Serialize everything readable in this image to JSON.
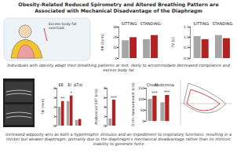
{
  "title": "Obesity-Related Reduced Spirometry and Altered Breathing Pattern are Associated with Mechanical Disadvantage of the Diaphragm",
  "figure_label": "Excess body fat overload",
  "finding": "Individuals with obesity adapt their breathing patterns at rest, likely to accommodate decreased compliance and excess body fat",
  "conclusion": "Increased adiposity acts as both a hypertrophic stimulus and an impediment to inspiratory functions, resulting in a thicker but weaker diaphragm, primarily due to the diaphragm's mechanical disadvantage rather than its intrinsic inability to generate force",
  "chart_data": [
    {
      "type": "bar",
      "y_label": "RR (bpm)",
      "categories": [
        "SITTING",
        "STANDING"
      ],
      "series": [
        {
          "color": "#a6a6a6",
          "values": [
            17,
            18
          ]
        },
        {
          "color": "#b22222",
          "values": [
            20,
            22
          ]
        }
      ],
      "ylim": [
        0,
        30
      ],
      "yticks": [
        0,
        10,
        20,
        30
      ],
      "grid": false
    },
    {
      "type": "bar",
      "y_label": "TV (L)",
      "categories": [
        "SITTING",
        "STANDING"
      ],
      "series": [
        {
          "color": "#a6a6a6",
          "values": [
            1.05,
            1.1
          ]
        },
        {
          "color": "#b22222",
          "values": [
            0.9,
            0.95
          ]
        }
      ],
      "ylim": [
        0,
        1.5
      ],
      "yticks": [
        {
          "value": 0,
          "label": "0.0"
        },
        {
          "value": 0.5,
          "label": "0.5"
        },
        {
          "value": 1,
          "label": "1.0"
        },
        {
          "value": 1.5,
          "label": "1.5"
        }
      ],
      "grid": false
    },
    {
      "type": "bar",
      "y_label": "Tdi (mm)",
      "categories": [
        "EE",
        "EI",
        "ΔTdi"
      ],
      "series": [
        {
          "color": "#a6a6a6",
          "values": [
            2.0,
            2.6,
            0.6
          ]
        },
        {
          "color": "#b22222",
          "values": [
            2.6,
            3.2,
            0.7
          ]
        }
      ],
      "ylim": [
        0,
        4
      ],
      "yticks": [
        0,
        1,
        2,
        3,
        4
      ],
      "grid": false,
      "annotations": [
        {
          "category": "EE",
          "text": "**"
        },
        {
          "category": "EI",
          "text": "*"
        }
      ]
    },
    {
      "type": "bar",
      "y_label": "Abdominal SAT (cm)",
      "categories": [
        null
      ],
      "series": [
        {
          "color": "#a6a6a6",
          "values": [
            1.5
          ]
        },
        {
          "color": "#b22222",
          "values": [
            5.5
          ]
        }
      ],
      "ylim": [
        0,
        8
      ],
      "yticks": [
        0,
        2,
        4,
        6,
        8
      ],
      "grid": false,
      "annotations": [
        {
          "category": null,
          "text": "***"
        }
      ]
    },
    {
      "type": "bar",
      "y_label": "Girth measurement (cm)",
      "categories": [
        "Chest",
        "Abdominal"
      ],
      "series": [
        {
          "color": "#a6a6a6",
          "values": [
            100,
            85
          ]
        },
        {
          "color": "#b22222",
          "values": [
            115,
            118
          ]
        }
      ],
      "ylim": [
        0,
        150
      ],
      "yticks": [
        0,
        50,
        100,
        150
      ],
      "grid": false,
      "annotations": [
        {
          "category": "Chest",
          "text": "***"
        },
        {
          "category": "Abdominal",
          "text": "***"
        }
      ]
    }
  ]
}
